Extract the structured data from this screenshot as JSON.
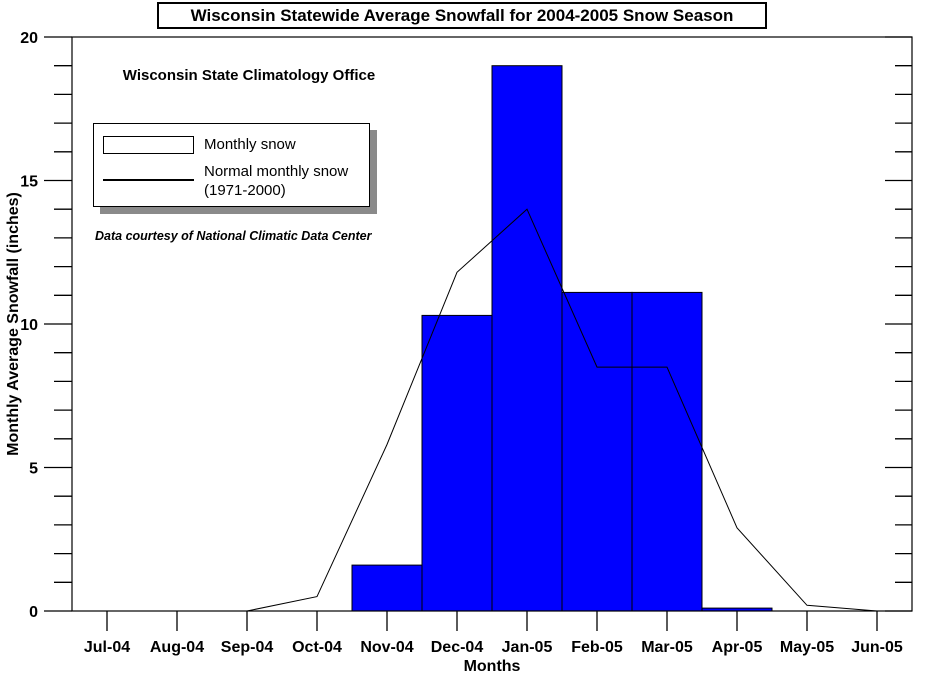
{
  "header": {
    "title": "Wisconsin Statewide Average Snowfall for 2004-2005 Snow Season"
  },
  "annotations": {
    "office": "Wisconsin State Climatology Office",
    "courtesy": "Data courtesy of National Climatic Data Center"
  },
  "legend": {
    "position": "upper-left",
    "items": [
      {
        "label": "Monthly snow",
        "swatch": "bar-swatch",
        "color": "#0000ff"
      },
      {
        "label": "Normal monthly snow",
        "label2": "(1971-2000)",
        "swatch": "line-sample",
        "color": "#000000"
      }
    ]
  },
  "colors": {
    "bar_fill": "#0000ff",
    "bar_stroke": "#000000",
    "line": "#000000",
    "axis": "#000000",
    "legend_shadow": "#8a8a8a",
    "background": "#ffffff"
  },
  "chart_data": {
    "type": "bar",
    "title": "Wisconsin Statewide Average Snowfall for 2004-2005 Snow Season",
    "xlabel": "Months",
    "ylabel": "Monthly Average Snowfall (inches)",
    "ylim": [
      0,
      20
    ],
    "y_major_ticks": [
      0,
      5,
      10,
      15,
      20
    ],
    "y_minor_step": 1,
    "grid": false,
    "legend_position": "upper-left",
    "categories": [
      "Jul-04",
      "Aug-04",
      "Sep-04",
      "Oct-04",
      "Nov-04",
      "Dec-04",
      "Jan-05",
      "Feb-05",
      "Mar-05",
      "Apr-05",
      "May-05",
      "Jun-05"
    ],
    "series": [
      {
        "name": "Monthly snow",
        "type": "bar",
        "color": "#0000ff",
        "values": [
          0,
          0,
          0,
          0,
          1.6,
          10.3,
          19.0,
          11.1,
          11.1,
          0.1,
          0,
          0
        ]
      },
      {
        "name": "Normal monthly snow (1971-2000)",
        "type": "line",
        "color": "#000000",
        "values": [
          0,
          0,
          0,
          0.5,
          5.8,
          11.8,
          14.0,
          8.5,
          8.5,
          2.9,
          0.2,
          0
        ]
      }
    ]
  }
}
